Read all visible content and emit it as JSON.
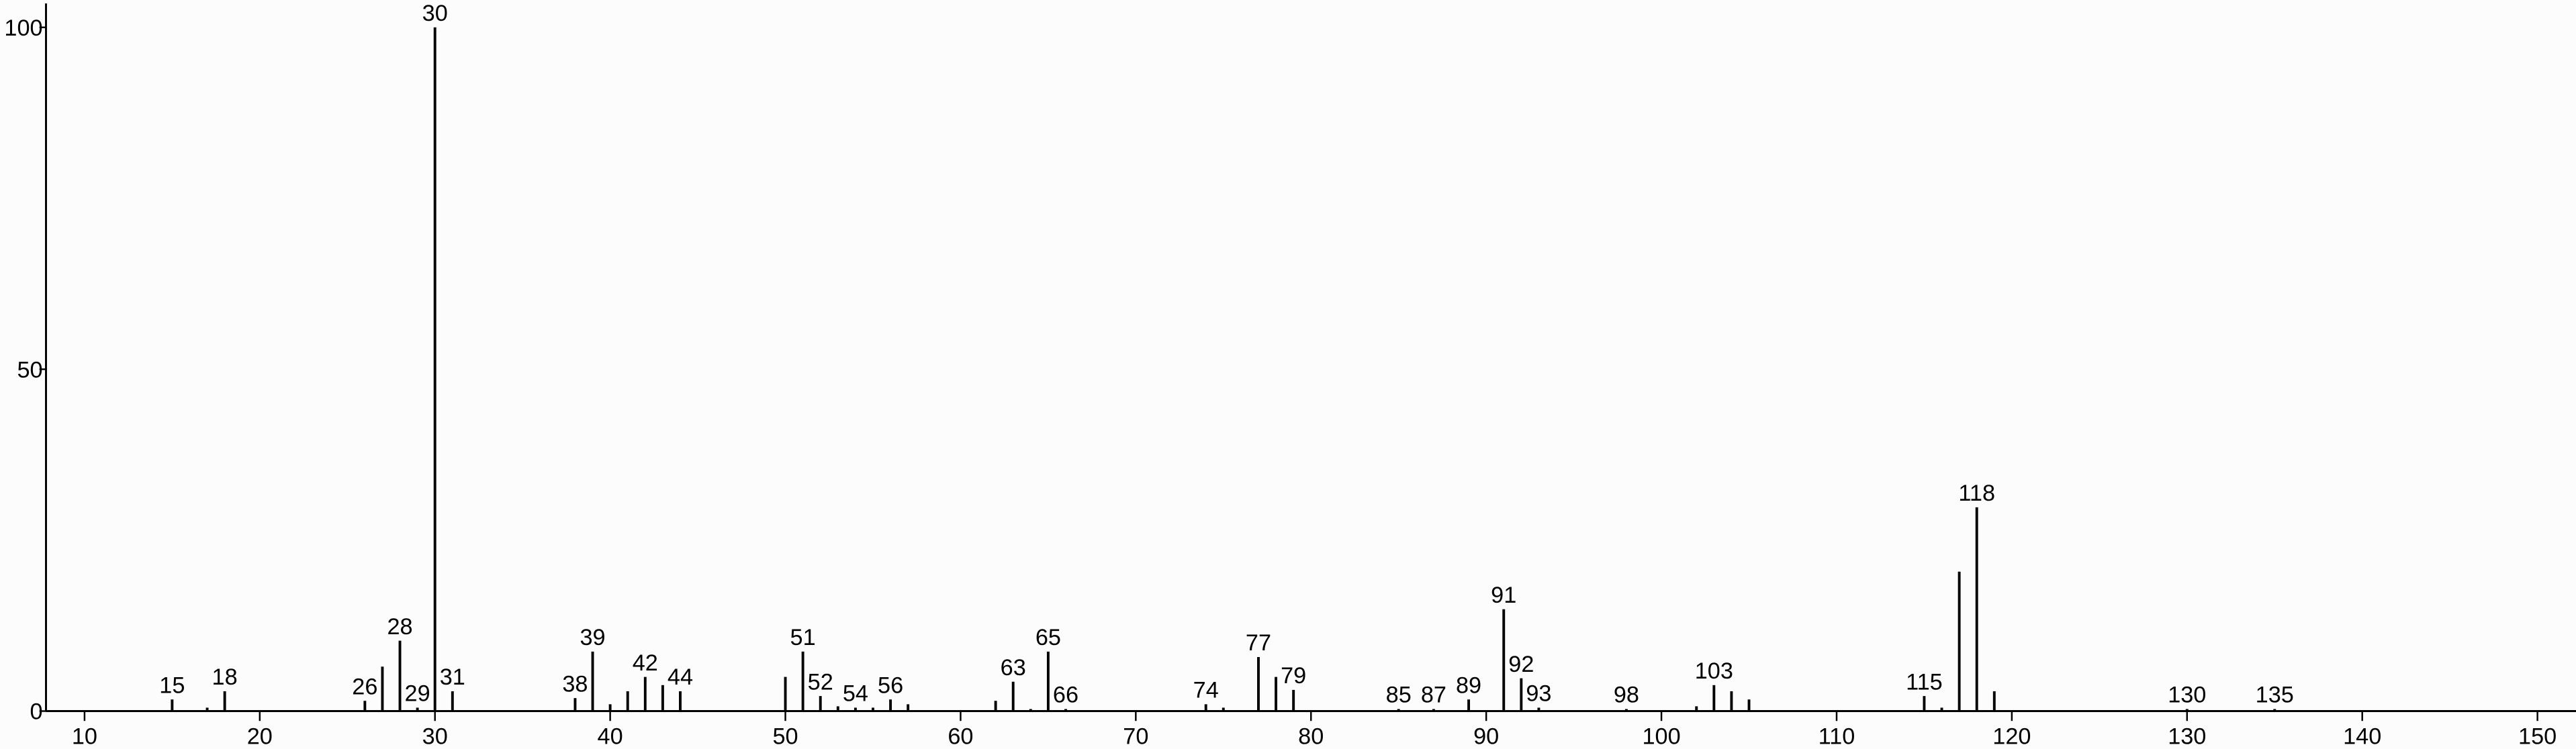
{
  "chart_data": {
    "type": "stem",
    "color": "#000000",
    "x": [
      15,
      17,
      18,
      26,
      27,
      28,
      29,
      30,
      31,
      38,
      39,
      40,
      41,
      42,
      43,
      44,
      50,
      51,
      52,
      53,
      54,
      55,
      56,
      57,
      62,
      63,
      64,
      65,
      66,
      74,
      75,
      77,
      78,
      79,
      85,
      87,
      89,
      91,
      92,
      93,
      98,
      102,
      103,
      104,
      105,
      115,
      116,
      117,
      118,
      119,
      130,
      135
    ],
    "values": [
      1.7,
      0.5,
      2.9,
      1.5,
      6.5,
      10.3,
      0.5,
      100,
      2.9,
      1.9,
      8.7,
      1.0,
      2.9,
      5.0,
      3.8,
      2.9,
      5.0,
      8.7,
      2.2,
      0.7,
      0.5,
      0.5,
      1.7,
      1.0,
      1.5,
      4.3,
      0.3,
      8.7,
      0.3,
      1.0,
      0.5,
      7.9,
      5.0,
      3.1,
      0.3,
      0.3,
      1.7,
      14.9,
      4.8,
      0.5,
      0.3,
      0.7,
      3.8,
      2.9,
      1.7,
      2.2,
      0.5,
      20.4,
      29.8,
      2.9,
      0.3,
      0.3
    ],
    "x_labels": [
      "15",
      null,
      "18",
      "26",
      null,
      "28",
      "29",
      "30",
      "31",
      "38",
      "39",
      null,
      null,
      "42",
      null,
      "44",
      null,
      "51",
      "52",
      null,
      "54",
      null,
      "56",
      null,
      null,
      "63",
      null,
      "65",
      "66",
      "74",
      null,
      "77",
      null,
      "79",
      "85",
      "87",
      "89",
      "91",
      "92",
      "93",
      "98",
      null,
      "103",
      null,
      null,
      "115",
      null,
      null,
      "118",
      null,
      "130",
      "135"
    ],
    "xlim": [
      7.8,
      152.2
    ],
    "ylim": [
      0,
      103.5
    ],
    "xticks": [
      10,
      20,
      30,
      40,
      50,
      60,
      70,
      80,
      90,
      100,
      110,
      120,
      130,
      140,
      150
    ],
    "yticks": [
      0,
      50,
      100
    ]
  }
}
